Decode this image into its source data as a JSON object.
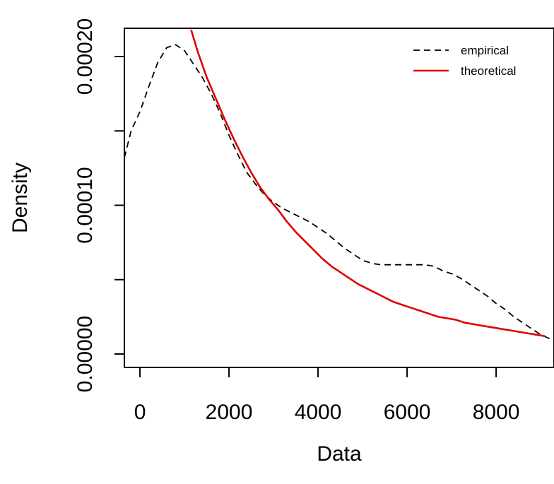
{
  "chart_data": {
    "type": "line",
    "title": "",
    "xlabel": "Data",
    "ylabel": "Density",
    "xlim": [
      -350,
      9300
    ],
    "ylim": [
      -9e-06,
      0.000219
    ],
    "x_ticks": [
      0,
      2000,
      4000,
      6000,
      8000
    ],
    "x_tick_labels": [
      "0",
      "2000",
      "4000",
      "6000",
      "8000"
    ],
    "y_ticks": [
      0.0,
      5e-05,
      0.0001,
      0.00015,
      0.0002
    ],
    "y_tick_labels": [
      "0.00000",
      "",
      "0.00010",
      "",
      "0.00020"
    ],
    "grid": false,
    "legend_position": "top-right",
    "series": [
      {
        "name": "empirical",
        "color": "#000000",
        "style": "dashed",
        "x": [
          -350,
          -200,
          0,
          200,
          400,
          600,
          800,
          1000,
          1200,
          1400,
          1600,
          1800,
          2000,
          2200,
          2400,
          2600,
          2800,
          3000,
          3200,
          3400,
          3600,
          3800,
          4000,
          4200,
          4400,
          4600,
          4800,
          5000,
          5200,
          5400,
          5600,
          5800,
          6000,
          6200,
          6400,
          6600,
          6800,
          7000,
          7200,
          7400,
          7600,
          7800,
          8000,
          8200,
          8400,
          8600,
          8800,
          9000,
          9300
        ],
        "y": [
          0.000132,
          0.00015,
          0.000163,
          0.00018,
          0.000196,
          0.000206,
          0.000208,
          0.000204,
          0.000195,
          0.000186,
          0.000175,
          0.000162,
          0.000147,
          0.000134,
          0.000122,
          0.000114,
          0.000107,
          0.000102,
          9.8e-05,
          9.5e-05,
          9.2e-05,
          8.9e-05,
          8.5e-05,
          8.1e-05,
          7.6e-05,
          7.1e-05,
          6.7e-05,
          6.3e-05,
          6.1e-05,
          6e-05,
          6e-05,
          6e-05,
          6e-05,
          6e-05,
          6e-05,
          5.9e-05,
          5.6e-05,
          5.4e-05,
          5.1e-05,
          4.7e-05,
          4.3e-05,
          3.9e-05,
          3.4e-05,
          3e-05,
          2.5e-05,
          2.1e-05,
          1.7e-05,
          1.3e-05,
          9e-06
        ]
      },
      {
        "name": "theoretical",
        "color": "#e00000",
        "style": "solid",
        "x": [
          1150,
          1300,
          1500,
          1700,
          1900,
          2100,
          2300,
          2500,
          2700,
          2900,
          3100,
          3300,
          3500,
          3700,
          3900,
          4100,
          4300,
          4500,
          4700,
          4900,
          5100,
          5300,
          5500,
          5700,
          5900,
          6100,
          6300,
          6500,
          6700,
          6900,
          7100,
          7300,
          7500,
          7700,
          7900,
          8100,
          8300,
          8500,
          8700,
          8900,
          9100
        ],
        "y": [
          0.000218,
          0.000203,
          0.000186,
          0.000172,
          0.000158,
          0.000145,
          0.000133,
          0.000122,
          0.000112,
          0.000104,
          9.7e-05,
          8.9e-05,
          8.2e-05,
          7.6e-05,
          7e-05,
          6.4e-05,
          5.9e-05,
          5.5e-05,
          5.1e-05,
          4.7e-05,
          4.4e-05,
          4.1e-05,
          3.8e-05,
          3.5e-05,
          3.3e-05,
          3.1e-05,
          2.9e-05,
          2.7e-05,
          2.5e-05,
          2.4e-05,
          2.3e-05,
          2.1e-05,
          2e-05,
          1.9e-05,
          1.8e-05,
          1.7e-05,
          1.6e-05,
          1.5e-05,
          1.4e-05,
          1.3e-05,
          1.2e-05
        ]
      }
    ]
  }
}
